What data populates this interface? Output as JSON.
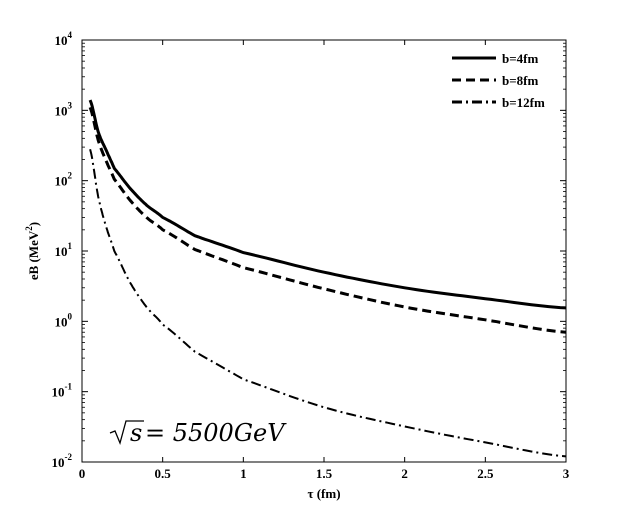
{
  "chart_data": {
    "type": "line",
    "title": "",
    "xlabel": "τ (fm)",
    "ylabel": "eB (MeV²)",
    "ylabel_parts": {
      "base": "eB (MeV",
      "sup": "2",
      "close": ")"
    },
    "xlim": [
      0,
      3
    ],
    "ylim": [
      0.01,
      10000
    ],
    "yscale": "log",
    "grid": false,
    "legend_position": "top-right",
    "x_ticks": [
      "0",
      "0.5",
      "1",
      "1.5",
      "2",
      "2.5",
      "3"
    ],
    "y_ticks": [
      {
        "base": "10",
        "exp": "-2"
      },
      {
        "base": "10",
        "exp": "-1"
      },
      {
        "base": "10",
        "exp": "0"
      },
      {
        "base": "10",
        "exp": "1"
      },
      {
        "base": "10",
        "exp": "2"
      },
      {
        "base": "10",
        "exp": "3"
      },
      {
        "base": "10",
        "exp": "4"
      }
    ],
    "annotation": "√s = 5500GeV",
    "annotation_parts": {
      "root": "√",
      "s": "s",
      "rest": " = 5500GeV"
    },
    "x": [
      0.05,
      0.1,
      0.15,
      0.2,
      0.3,
      0.4,
      0.5,
      0.7,
      1.0,
      1.5,
      2.0,
      2.5,
      3.0
    ],
    "series": [
      {
        "name": "b=4fm",
        "style": "solid",
        "color": "#000000",
        "values": [
          1400,
          500,
          270,
          150,
          77,
          45,
          30,
          16.5,
          9.5,
          5.0,
          3.0,
          2.1,
          1.55
        ]
      },
      {
        "name": "b=8fm",
        "style": "dashed",
        "color": "#000000",
        "values": [
          1100,
          380,
          190,
          105,
          52,
          30,
          20,
          10.5,
          5.8,
          2.9,
          1.6,
          1.05,
          0.7
        ]
      },
      {
        "name": "b=12fm",
        "style": "dashdot",
        "color": "#000000",
        "values": [
          280,
          60,
          22,
          10,
          3.5,
          1.6,
          0.9,
          0.37,
          0.15,
          0.06,
          0.032,
          0.019,
          0.012
        ]
      }
    ]
  }
}
